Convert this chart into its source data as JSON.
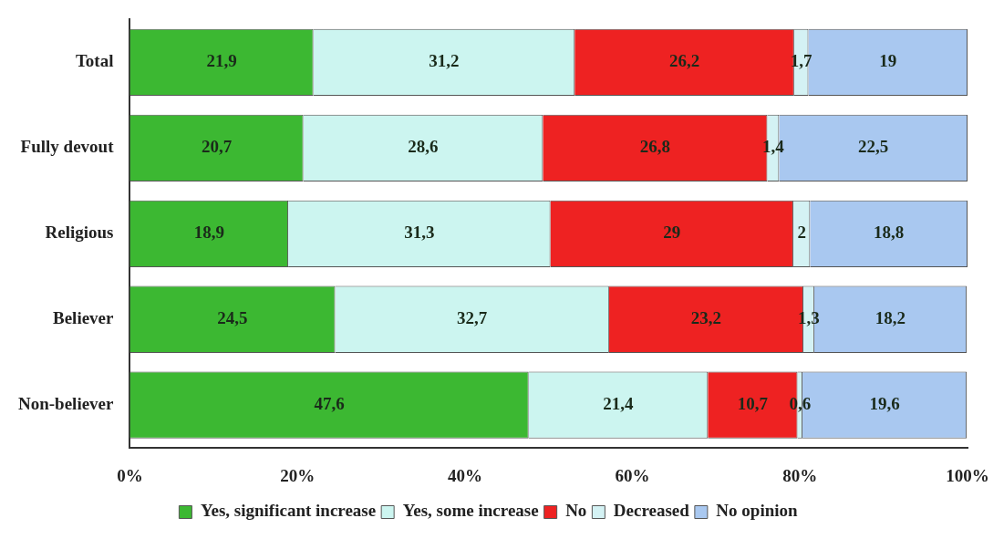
{
  "chart_data": {
    "type": "bar",
    "orientation": "horizontal",
    "stacked": true,
    "categories": [
      "Total",
      "Fully devout",
      "Religious",
      "Believer",
      "Non-believer"
    ],
    "series": [
      {
        "name": "Yes, significant increase",
        "color": "#3cb832",
        "values": [
          21.9,
          20.7,
          18.9,
          24.5,
          47.6
        ],
        "value_labels": [
          "21,9",
          "20,7",
          "18,9",
          "24,5",
          "47,6"
        ]
      },
      {
        "name": "Yes, some increase",
        "color": "#ccf5f0",
        "values": [
          31.2,
          28.6,
          31.3,
          32.7,
          21.4
        ],
        "value_labels": [
          "31,2",
          "28,6",
          "31,3",
          "32,7",
          "21,4"
        ]
      },
      {
        "name": "No",
        "color": "#ee2222",
        "values": [
          26.2,
          26.8,
          29,
          23.2,
          10.7
        ],
        "value_labels": [
          "26,2",
          "26,8",
          "29",
          "23,2",
          "10,7"
        ]
      },
      {
        "name": "Decreased",
        "color": "#d4f2f4",
        "values": [
          1.7,
          1.4,
          2,
          1.3,
          0.6
        ],
        "value_labels": [
          "1,7",
          "1,4",
          "2",
          "1,3",
          "0,6"
        ]
      },
      {
        "name": "No opinion",
        "color": "#a9c8f0",
        "values": [
          19,
          22.5,
          18.8,
          18.2,
          19.6
        ],
        "value_labels": [
          "19",
          "22,5",
          "18,8",
          "18,2",
          "19,6"
        ]
      }
    ],
    "xlim": [
      0,
      100
    ],
    "xticks": [
      {
        "value": 0,
        "label": "0%"
      },
      {
        "value": 20,
        "label": "20%"
      },
      {
        "value": 40,
        "label": "40%"
      },
      {
        "value": 60,
        "label": "60%"
      },
      {
        "value": 80,
        "label": "80%"
      },
      {
        "value": 100,
        "label": "100%"
      }
    ],
    "grid": false,
    "legend": "bottom"
  }
}
